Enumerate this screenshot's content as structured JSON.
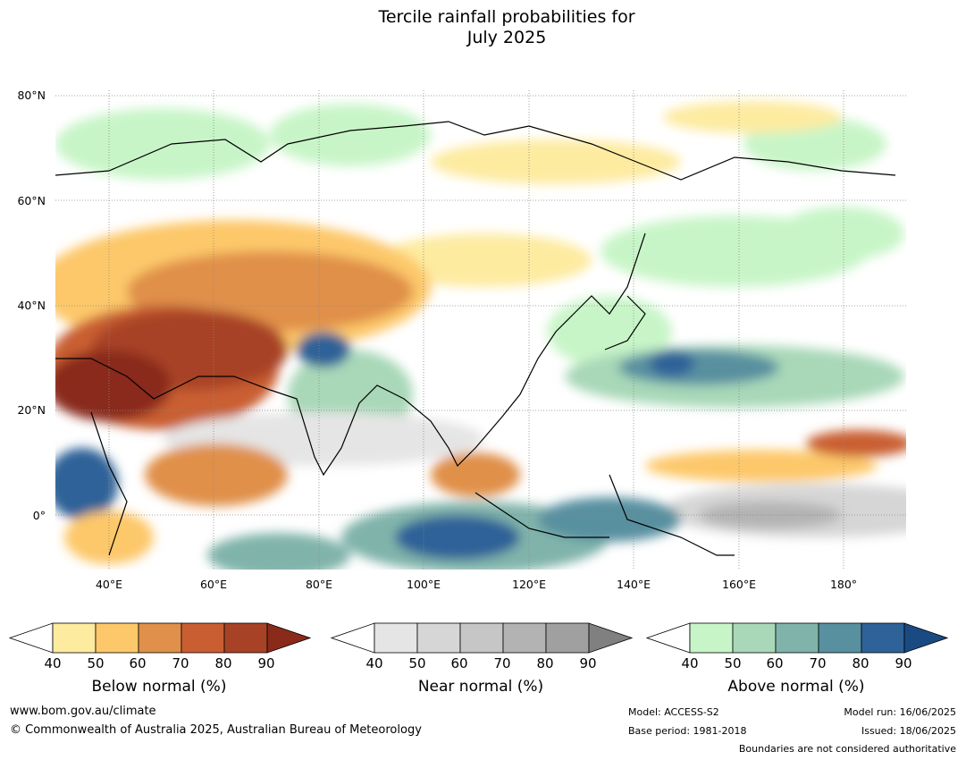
{
  "title_line1": "Tercile rainfall probabilities for",
  "title_line2": "July 2025",
  "map": {
    "lat_labels": [
      "80°N",
      "60°N",
      "40°N",
      "20°N",
      "0°"
    ],
    "lon_labels": [
      "40°E",
      "60°E",
      "80°E",
      "100°E",
      "120°E",
      "140°E",
      "160°E",
      "180°"
    ],
    "lat_range": [
      -10,
      80
    ],
    "lon_range": [
      30,
      192
    ]
  },
  "colorbars": [
    {
      "label": "Below normal (%)",
      "ticks": [
        "40",
        "50",
        "60",
        "70",
        "80",
        "90"
      ],
      "colors": [
        "#fdeba0",
        "#fdc86a",
        "#e0904a",
        "#c95e33",
        "#a84226",
        "#8a2a1a"
      ]
    },
    {
      "label": "Near normal (%)",
      "ticks": [
        "40",
        "50",
        "60",
        "70",
        "80",
        "90"
      ],
      "colors": [
        "#e5e5e5",
        "#d6d6d6",
        "#c6c6c6",
        "#b3b3b3",
        "#a0a0a0",
        "#808080"
      ]
    },
    {
      "label": "Above normal (%)",
      "ticks": [
        "40",
        "50",
        "60",
        "70",
        "80",
        "90"
      ],
      "colors": [
        "#c8f5c8",
        "#a8d8b8",
        "#80b4aa",
        "#5890a0",
        "#2e6298",
        "#1a4a82"
      ]
    }
  ],
  "footer": {
    "website": "www.bom.gov.au/climate",
    "copyright": "© Commonwealth of Australia 2025, Australian Bureau of Meteorology",
    "model": "Model: ACCESS-S2",
    "base_period": "Base period: 1981-2018",
    "model_run": "Model run: 16/06/2025",
    "issued": "Issued: 18/06/2025",
    "boundaries_note": "Boundaries are not considered authoritative"
  }
}
